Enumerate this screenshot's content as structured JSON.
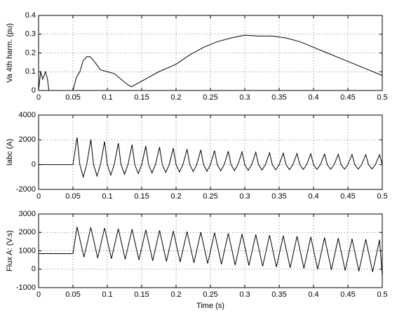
{
  "chart_data": [
    {
      "type": "line",
      "ylabel": "Va 4th harm. (pu)",
      "x": [
        0,
        0.003,
        0.006,
        0.01,
        0.013,
        0.015,
        0.05,
        0.055,
        0.06,
        0.065,
        0.07,
        0.075,
        0.08,
        0.09,
        0.1,
        0.11,
        0.12,
        0.13,
        0.135,
        0.145,
        0.16,
        0.175,
        0.2,
        0.22,
        0.24,
        0.26,
        0.28,
        0.3,
        0.32,
        0.34,
        0.36,
        0.38,
        0.4,
        0.42,
        0.44,
        0.46,
        0.48,
        0.5
      ],
      "series": [
        {
          "color": "#000000",
          "values": [
            0,
            0.1,
            0.06,
            0.1,
            0.06,
            0,
            0,
            0.07,
            0.1,
            0.16,
            0.18,
            0.18,
            0.16,
            0.11,
            0.1,
            0.09,
            0.06,
            0.03,
            0.02,
            0.04,
            0.07,
            0.1,
            0.14,
            0.19,
            0.23,
            0.26,
            0.28,
            0.295,
            0.29,
            0.29,
            0.28,
            0.26,
            0.23,
            0.2,
            0.17,
            0.14,
            0.11,
            0.08
          ]
        }
      ],
      "xlim": [
        0,
        0.5
      ],
      "xticks": [
        0,
        0.05,
        0.1,
        0.15,
        0.2,
        0.25,
        0.3,
        0.35,
        0.4,
        0.45,
        0.5
      ],
      "ylim": [
        0,
        0.4
      ],
      "yticks": [
        0,
        0.1,
        0.2,
        0.3,
        0.4
      ],
      "grid": true
    },
    {
      "type": "line",
      "ylabel": "Iabc (A)",
      "x": [
        0,
        0.05,
        0.056,
        0.06,
        0.065,
        0.07,
        0.076,
        0.08,
        0.085,
        0.09,
        0.096,
        0.1,
        0.105,
        0.11,
        0.116,
        0.12,
        0.125,
        0.13,
        0.136,
        0.14,
        0.145,
        0.15,
        0.156,
        0.16,
        0.165,
        0.17,
        0.176,
        0.18,
        0.185,
        0.19,
        0.196,
        0.2,
        0.205,
        0.21,
        0.216,
        0.22,
        0.225,
        0.23,
        0.236,
        0.24,
        0.245,
        0.25,
        0.256,
        0.26,
        0.265,
        0.27,
        0.276,
        0.28,
        0.285,
        0.29,
        0.296,
        0.3,
        0.305,
        0.31,
        0.316,
        0.32,
        0.325,
        0.33,
        0.336,
        0.34,
        0.345,
        0.35,
        0.356,
        0.36,
        0.365,
        0.37,
        0.376,
        0.38,
        0.385,
        0.39,
        0.396,
        0.4,
        0.405,
        0.41,
        0.416,
        0.42,
        0.425,
        0.43,
        0.436,
        0.44,
        0.445,
        0.45,
        0.456,
        0.46,
        0.465,
        0.47,
        0.476,
        0.48,
        0.485,
        0.49,
        0.496,
        0.5
      ],
      "series": [
        {
          "color": "#000000",
          "values": [
            0,
            0,
            2200,
            0,
            -1000,
            0,
            2020,
            0,
            -920,
            0,
            1870,
            0,
            -850,
            0,
            1730,
            0,
            -780,
            0,
            1610,
            0,
            -720,
            0,
            1500,
            0,
            -670,
            0,
            1410,
            0,
            -630,
            0,
            1330,
            0,
            -590,
            0,
            1250,
            0,
            -560,
            0,
            1190,
            0,
            -530,
            0,
            1130,
            0,
            -500,
            0,
            1080,
            0,
            -480,
            0,
            1030,
            0,
            -460,
            0,
            1000,
            0,
            -440,
            0,
            960,
            0,
            -420,
            0,
            930,
            0,
            -410,
            0,
            900,
            0,
            -390,
            0,
            880,
            0,
            -380,
            0,
            860,
            0,
            -370,
            0,
            840,
            0,
            -370,
            0,
            820,
            0,
            -360,
            0,
            810,
            0,
            -350,
            0,
            800,
            0
          ]
        }
      ],
      "xlim": [
        0,
        0.5
      ],
      "xticks": [
        0,
        0.05,
        0.1,
        0.15,
        0.2,
        0.25,
        0.3,
        0.35,
        0.4,
        0.45,
        0.5
      ],
      "ylim": [
        -2000,
        4000
      ],
      "yticks": [
        -2000,
        0,
        2000,
        4000
      ],
      "grid": true
    },
    {
      "type": "line",
      "ylabel": "Flux A:  (V.s)",
      "xlabel": "Time (s)",
      "x": [
        0,
        0.05,
        0.056,
        0.066,
        0.076,
        0.086,
        0.096,
        0.106,
        0.116,
        0.126,
        0.136,
        0.146,
        0.156,
        0.166,
        0.176,
        0.186,
        0.196,
        0.206,
        0.216,
        0.226,
        0.236,
        0.246,
        0.256,
        0.266,
        0.276,
        0.286,
        0.296,
        0.306,
        0.316,
        0.326,
        0.336,
        0.346,
        0.356,
        0.366,
        0.376,
        0.386,
        0.396,
        0.406,
        0.416,
        0.426,
        0.436,
        0.446,
        0.456,
        0.466,
        0.476,
        0.486,
        0.496,
        0.5
      ],
      "series": [
        {
          "color": "#000000",
          "values": [
            850,
            850,
            2300,
            650,
            2270,
            610,
            2240,
            570,
            2200,
            540,
            2170,
            500,
            2140,
            460,
            2110,
            420,
            2080,
            390,
            2040,
            350,
            2010,
            310,
            1980,
            270,
            1950,
            230,
            1920,
            200,
            1880,
            160,
            1850,
            120,
            1820,
            80,
            1790,
            40,
            1760,
            0,
            1720,
            -30,
            1690,
            -70,
            1660,
            -110,
            1630,
            -150,
            1600,
            -350
          ]
        }
      ],
      "xlim": [
        0,
        0.5
      ],
      "xticks": [
        0,
        0.05,
        0.1,
        0.15,
        0.2,
        0.25,
        0.3,
        0.35,
        0.4,
        0.45,
        0.5
      ],
      "ylim": [
        -1000,
        3000
      ],
      "yticks": [
        -1000,
        0,
        1000,
        2000,
        3000
      ],
      "grid": true
    }
  ]
}
